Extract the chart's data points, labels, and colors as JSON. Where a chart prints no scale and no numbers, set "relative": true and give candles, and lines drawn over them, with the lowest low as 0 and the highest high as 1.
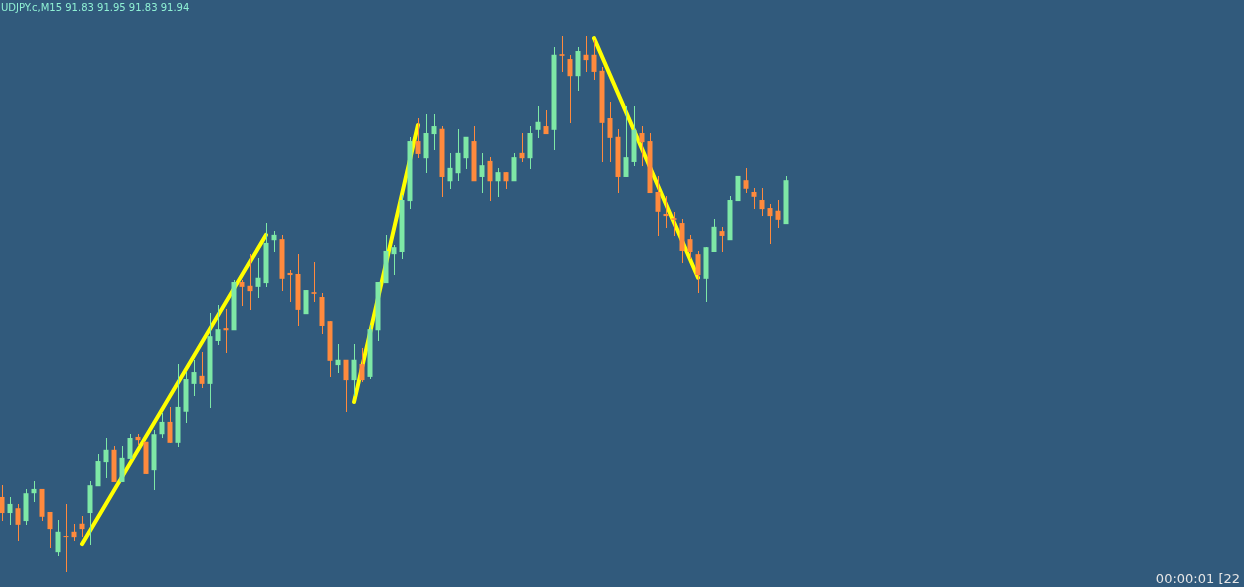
{
  "chart_data": {
    "type": "candlestick",
    "title": "UDJPY.c,M15 91.83 91.95 91.83 91.94",
    "relative": true,
    "categories": [
      null,
      null,
      null,
      null,
      null,
      null,
      null,
      null,
      null,
      null,
      null,
      null,
      null,
      null,
      null,
      null,
      null,
      null,
      null,
      null,
      null,
      null,
      null,
      null,
      null,
      null,
      null,
      null,
      null,
      null,
      null,
      null,
      null,
      null,
      null,
      null,
      null,
      null,
      null,
      null,
      null,
      null,
      null,
      null,
      null,
      null,
      null,
      null,
      null,
      null,
      null,
      null,
      null,
      null,
      null,
      null,
      null,
      null,
      null,
      null,
      null,
      null,
      null,
      null,
      null,
      null,
      null,
      null,
      null,
      null,
      null,
      null,
      null,
      null,
      null,
      null,
      null,
      null,
      null,
      null,
      null,
      null,
      null,
      null,
      null,
      null,
      null,
      null,
      null,
      null,
      null,
      null,
      null,
      null,
      null,
      null,
      null,
      null,
      null
    ],
    "ohlc": [
      [
        0.14,
        0.162,
        0.095,
        0.11
      ],
      [
        0.11,
        0.14,
        0.088,
        0.127
      ],
      [
        0.119,
        0.127,
        0.058,
        0.088
      ],
      [
        0.095,
        0.155,
        0.088,
        0.147
      ],
      [
        0.147,
        0.17,
        0.131,
        0.155
      ],
      [
        0.155,
        0.155,
        0.095,
        0.103
      ],
      [
        0.112,
        0.112,
        0.045,
        0.08
      ],
      [
        0.037,
        0.097,
        0.03,
        0.075
      ],
      [
        0.067,
        0.127,
        0,
        0.067
      ],
      [
        0.075,
        0.09,
        0.058,
        0.065
      ],
      [
        0.09,
        0.104,
        0.065,
        0.08
      ],
      [
        0.11,
        0.17,
        0.05,
        0.162
      ],
      [
        0.16,
        0.22,
        0.16,
        0.207
      ],
      [
        0.205,
        0.25,
        0.175,
        0.228
      ],
      [
        0.228,
        0.235,
        0.168,
        0.168
      ],
      [
        0.168,
        0.235,
        0.168,
        0.213
      ],
      [
        0.211,
        0.257,
        0.211,
        0.25
      ],
      [
        0.252,
        0.257,
        0.237,
        0.246
      ],
      [
        0.243,
        0.243,
        0.183,
        0.183
      ],
      [
        0.19,
        0.265,
        0.153,
        0.257
      ],
      [
        0.257,
        0.297,
        0.25,
        0.28
      ],
      [
        0.28,
        0.308,
        0.241,
        0.241
      ],
      [
        0.241,
        0.388,
        0.233,
        0.308
      ],
      [
        0.299,
        0.373,
        0.278,
        0.36
      ],
      [
        0.351,
        0.396,
        0.328,
        0.373
      ],
      [
        0.366,
        0.41,
        0.343,
        0.351
      ],
      [
        0.351,
        0.483,
        0.306,
        0.44
      ],
      [
        0.431,
        0.498,
        0.424,
        0.453
      ],
      [
        0.455,
        0.491,
        0.409,
        0.451
      ],
      [
        0.451,
        0.545,
        0.451,
        0.541
      ],
      [
        0.541,
        0.545,
        0.496,
        0.532
      ],
      [
        0.534,
        0.593,
        0.489,
        0.524
      ],
      [
        0.532,
        0.586,
        0.511,
        0.549
      ],
      [
        0.539,
        0.651,
        0.532,
        0.614
      ],
      [
        0.619,
        0.636,
        0.597,
        0.629
      ],
      [
        0.621,
        0.629,
        0.524,
        0.547
      ],
      [
        0.558,
        0.563,
        0.504,
        0.554
      ],
      [
        0.556,
        0.593,
        0.459,
        0.489
      ],
      [
        0.481,
        0.526,
        0.481,
        0.526
      ],
      [
        0.522,
        0.578,
        0.504,
        0.519
      ],
      [
        0.513,
        0.521,
        0.444,
        0.459
      ],
      [
        0.468,
        0.468,
        0.364,
        0.394
      ],
      [
        0.386,
        0.425,
        0.371,
        0.396
      ],
      [
        0.396,
        0.396,
        0.299,
        0.358
      ],
      [
        0.358,
        0.425,
        0.328,
        0.396
      ],
      [
        0.388,
        0.418,
        0.354,
        0.358
      ],
      [
        0.364,
        0.461,
        0.36,
        0.453
      ],
      [
        0.451,
        0.541,
        0.431,
        0.541
      ],
      [
        0.539,
        0.629,
        0.539,
        0.599
      ],
      [
        0.593,
        0.61,
        0.554,
        0.606
      ],
      [
        0.597,
        0.703,
        0.584,
        0.694
      ],
      [
        0.692,
        0.812,
        0.677,
        0.804
      ],
      [
        0.804,
        0.847,
        0.772,
        0.78
      ],
      [
        0.772,
        0.854,
        0.744,
        0.819
      ],
      [
        0.817,
        0.854,
        0.787,
        0.832
      ],
      [
        0.827,
        0.832,
        0.7,
        0.737
      ],
      [
        0.729,
        0.782,
        0.715,
        0.754
      ],
      [
        0.744,
        0.827,
        0.729,
        0.782
      ],
      [
        0.772,
        0.812,
        0.752,
        0.812
      ],
      [
        0.804,
        0.832,
        0.729,
        0.729
      ],
      [
        0.737,
        0.782,
        0.707,
        0.759
      ],
      [
        0.767,
        0.774,
        0.692,
        0.729
      ],
      [
        0.729,
        0.754,
        0.7,
        0.746
      ],
      [
        0.746,
        0.746,
        0.715,
        0.729
      ],
      [
        0.729,
        0.782,
        0.729,
        0.774
      ],
      [
        0.782,
        0.819,
        0.765,
        0.772
      ],
      [
        0.772,
        0.832,
        0.752,
        0.819
      ],
      [
        0.825,
        0.869,
        0.81,
        0.84
      ],
      [
        0.832,
        0.862,
        0.817,
        0.817
      ],
      [
        0.825,
        0.979,
        0.787,
        0.965
      ],
      [
        0.966,
        1,
        0.933,
        0.963
      ],
      [
        0.957,
        0.965,
        0.838,
        0.925
      ],
      [
        0.925,
        0.979,
        0.897,
        0.972
      ],
      [
        0.965,
        1,
        0.933,
        0.955
      ],
      [
        0.965,
        0.993,
        0.918,
        0.933
      ],
      [
        0.935,
        0.942,
        0.765,
        0.838
      ],
      [
        0.847,
        0.877,
        0.765,
        0.81
      ],
      [
        0.812,
        0.827,
        0.707,
        0.737
      ],
      [
        0.737,
        0.869,
        0.737,
        0.774
      ],
      [
        0.765,
        0.869,
        0.757,
        0.825
      ],
      [
        0.819,
        0.832,
        0.757,
        0.802
      ],
      [
        0.804,
        0.819,
        0.707,
        0.707
      ],
      [
        0.709,
        0.739,
        0.627,
        0.672
      ],
      [
        0.668,
        0.702,
        0.642,
        0.664
      ],
      [
        0.66,
        0.672,
        0.627,
        0.657
      ],
      [
        0.651,
        0.659,
        0.576,
        0.599
      ],
      [
        0.621,
        0.629,
        0.584,
        0.597
      ],
      [
        0.593,
        0.599,
        0.521,
        0.554
      ],
      [
        0.547,
        0.606,
        0.504,
        0.606
      ],
      [
        0.597,
        0.659,
        0.597,
        0.644
      ],
      [
        0.636,
        0.644,
        0.597,
        0.627
      ],
      [
        0.619,
        0.702,
        0.619,
        0.694
      ],
      [
        0.692,
        0.739,
        0.692,
        0.739
      ],
      [
        0.731,
        0.754,
        0.707,
        0.715
      ],
      [
        0.709,
        0.716,
        0.677,
        0.7
      ],
      [
        0.694,
        0.716,
        0.664,
        0.677
      ],
      [
        0.679,
        0.687,
        0.612,
        0.664
      ],
      [
        0.674,
        0.694,
        0.642,
        0.657
      ],
      [
        0.649,
        0.739,
        0.649,
        0.731
      ]
    ],
    "colors": [
      "#ff8a3d",
      "#7ee8a6",
      "#ff8a3d",
      "#7ee8a6",
      "#7ee8a6",
      "#ff8a3d",
      "#ff8a3d",
      "#7ee8a6",
      "#ff8a3d",
      "#ff8a3d",
      "#ff8a3d",
      "#7ee8a6",
      "#7ee8a6",
      "#7ee8a6",
      "#ff8a3d",
      "#7ee8a6",
      "#7ee8a6",
      "#ff8a3d",
      "#ff8a3d",
      "#7ee8a6",
      "#7ee8a6",
      "#ff8a3d",
      "#7ee8a6",
      "#7ee8a6",
      "#7ee8a6",
      "#ff8a3d",
      "#7ee8a6",
      "#7ee8a6",
      "#ff8a3d",
      "#7ee8a6",
      "#ff8a3d",
      "#ff8a3d",
      "#7ee8a6",
      "#7ee8a6",
      "#7ee8a6",
      "#ff8a3d",
      "#ff8a3d",
      "#ff8a3d",
      "#7ee8a6",
      "#ff8a3d",
      "#ff8a3d",
      "#ff8a3d",
      "#7ee8a6",
      "#ff8a3d",
      "#7ee8a6",
      "#ff8a3d",
      "#7ee8a6",
      "#7ee8a6",
      "#7ee8a6",
      "#7ee8a6",
      "#7ee8a6",
      "#7ee8a6",
      "#ff8a3d",
      "#7ee8a6",
      "#7ee8a6",
      "#ff8a3d",
      "#7ee8a6",
      "#7ee8a6",
      "#7ee8a6",
      "#ff8a3d",
      "#7ee8a6",
      "#ff8a3d",
      "#7ee8a6",
      "#ff8a3d",
      "#7ee8a6",
      "#ff8a3d",
      "#7ee8a6",
      "#7ee8a6",
      "#ff8a3d",
      "#7ee8a6",
      "#ff8a3d",
      "#ff8a3d",
      "#7ee8a6",
      "#ff8a3d",
      "#ff8a3d",
      "#ff8a3d",
      "#ff8a3d",
      "#ff8a3d",
      "#7ee8a6",
      "#7ee8a6",
      "#ff8a3d",
      "#ff8a3d",
      "#ff8a3d",
      "#ff8a3d",
      "#ff8a3d",
      "#ff8a3d",
      "#ff8a3d",
      "#ff8a3d",
      "#7ee8a6",
      "#7ee8a6",
      "#ff8a3d",
      "#7ee8a6",
      "#7ee8a6",
      "#ff8a3d",
      "#ff8a3d",
      "#ff8a3d",
      "#ff8a3d",
      "#ff8a3d",
      "#7ee8a6"
    ],
    "series": [
      {
        "type": "line",
        "values": [
          null,
          null,
          null,
          null,
          null,
          null,
          null,
          null,
          null,
          null,
          0.052,
          null,
          null,
          null,
          null,
          null,
          null,
          null,
          null,
          null,
          null,
          null,
          null,
          null,
          null,
          null,
          null,
          null,
          null,
          null,
          null,
          null,
          null,
          0.629,
          null,
          null,
          null,
          null,
          null,
          null,
          null,
          null,
          null,
          null,
          null,
          null,
          null,
          null,
          null,
          null,
          null,
          null,
          null,
          null,
          null,
          null,
          null,
          null,
          null,
          null,
          null,
          null,
          null,
          null,
          null,
          null,
          null,
          null,
          null,
          null,
          null,
          null,
          null,
          null,
          null,
          null,
          null,
          null,
          null,
          null,
          null,
          null,
          null,
          null,
          null,
          null,
          null,
          null,
          null,
          null,
          null,
          null,
          null,
          null,
          null,
          null,
          null,
          null,
          null
        ],
        "color": "#ffff00"
      },
      {
        "type": "line",
        "values": [
          null,
          null,
          null,
          null,
          null,
          null,
          null,
          null,
          null,
          null,
          null,
          null,
          null,
          null,
          null,
          null,
          null,
          null,
          null,
          null,
          null,
          null,
          null,
          null,
          null,
          null,
          null,
          null,
          null,
          null,
          null,
          null,
          null,
          null,
          null,
          null,
          null,
          null,
          null,
          null,
          null,
          null,
          null,
          null,
          0.317,
          null,
          null,
          null,
          null,
          null,
          null,
          null,
          0.834,
          null,
          null,
          null,
          null,
          null,
          null,
          null,
          null,
          null,
          null,
          null,
          null,
          null,
          null,
          null,
          null,
          null,
          null,
          null,
          null,
          null,
          null,
          null,
          null,
          null,
          null,
          null,
          null,
          null,
          null,
          null,
          null,
          null,
          null,
          null,
          null,
          null,
          null,
          null,
          null,
          null,
          null,
          null,
          null,
          null,
          null
        ],
        "color": "#ffff00"
      },
      {
        "type": "line",
        "values": [
          null,
          null,
          null,
          null,
          null,
          null,
          null,
          null,
          null,
          null,
          null,
          null,
          null,
          null,
          null,
          null,
          null,
          null,
          null,
          null,
          null,
          null,
          null,
          null,
          null,
          null,
          null,
          null,
          null,
          null,
          null,
          null,
          null,
          null,
          null,
          null,
          null,
          null,
          null,
          null,
          null,
          null,
          null,
          null,
          null,
          null,
          null,
          null,
          null,
          null,
          null,
          null,
          null,
          null,
          null,
          null,
          null,
          null,
          null,
          null,
          null,
          null,
          null,
          null,
          null,
          null,
          null,
          null,
          null,
          null,
          null,
          null,
          null,
          null,
          0.996,
          null,
          null,
          null,
          null,
          null,
          null,
          null,
          null,
          null,
          null,
          null,
          null,
          0.549,
          null,
          null,
          null,
          null,
          null,
          null,
          null,
          null,
          null,
          null,
          null
        ],
        "color": "#ffff00"
      }
    ],
    "annotations": [
      "00:00:01 [22"
    ]
  }
}
